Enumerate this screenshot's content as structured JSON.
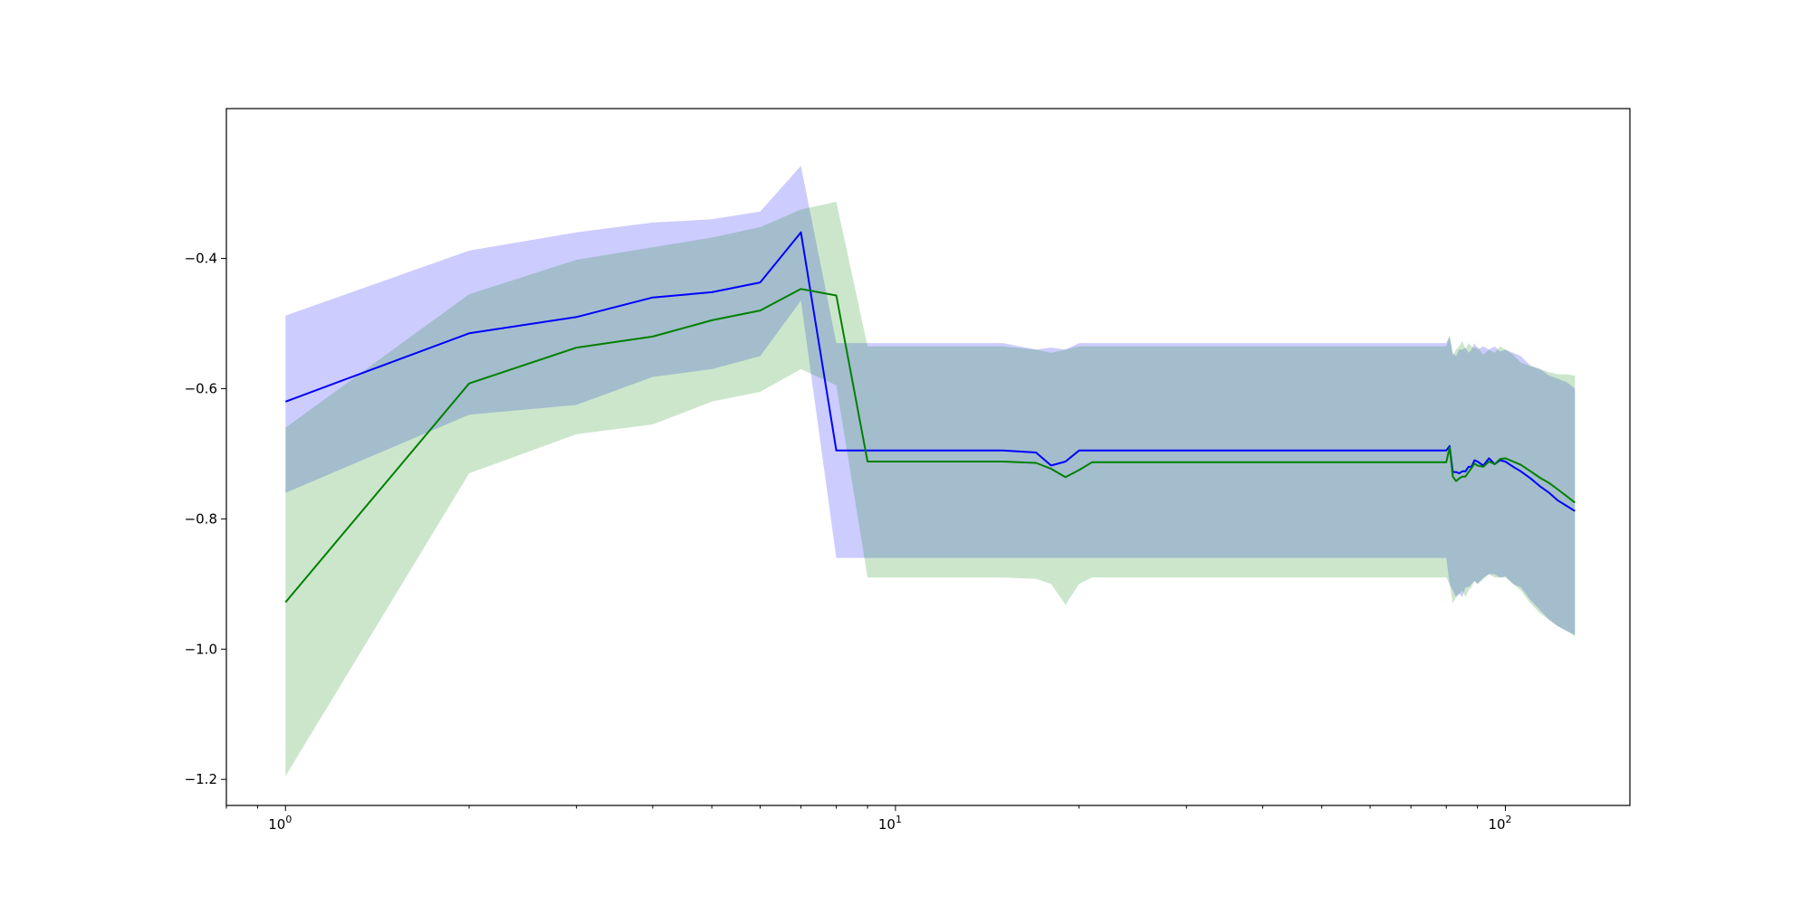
{
  "chart_data": {
    "type": "line",
    "title": "",
    "xlabel": "",
    "ylabel": "",
    "xscale": "log",
    "xlim": [
      0.8,
      160
    ],
    "ylim": [
      -1.24,
      -0.17
    ],
    "x_ticks": [
      {
        "value": 1,
        "base": "10",
        "exp": "0"
      },
      {
        "value": 10,
        "base": "10",
        "exp": "1"
      },
      {
        "value": 100,
        "base": "10",
        "exp": "2"
      }
    ],
    "y_ticks": [
      {
        "value": -0.4,
        "label": "−0.4"
      },
      {
        "value": -0.6,
        "label": "−0.6"
      },
      {
        "value": -0.8,
        "label": "−0.8"
      },
      {
        "value": -1.0,
        "label": "−1.0"
      },
      {
        "value": -1.2,
        "label": "−1.2"
      }
    ],
    "grid": false,
    "legend": "none",
    "series": [
      {
        "color": "#0000ff",
        "band_color": "#0000ff",
        "band_opacity": 0.2,
        "x": [
          1,
          2,
          3,
          4,
          5,
          6,
          7,
          8,
          9,
          10,
          15,
          17,
          18,
          19,
          20,
          25,
          30,
          40,
          50,
          60,
          70,
          80,
          81,
          82,
          83,
          84,
          85,
          86,
          87,
          88,
          89,
          90,
          92,
          94,
          96,
          98,
          100,
          103,
          106,
          110,
          114,
          118,
          122,
          126,
          130
        ],
        "y": [
          -0.62,
          -0.515,
          -0.49,
          -0.46,
          -0.452,
          -0.437,
          -0.36,
          -0.695,
          -0.695,
          -0.695,
          -0.695,
          -0.698,
          -0.718,
          -0.712,
          -0.695,
          -0.695,
          -0.695,
          -0.695,
          -0.695,
          -0.695,
          -0.695,
          -0.695,
          -0.688,
          -0.728,
          -0.728,
          -0.73,
          -0.727,
          -0.727,
          -0.72,
          -0.72,
          -0.71,
          -0.712,
          -0.718,
          -0.707,
          -0.716,
          -0.71,
          -0.712,
          -0.72,
          -0.727,
          -0.738,
          -0.75,
          -0.76,
          -0.772,
          -0.78,
          -0.788
        ],
        "lower": [
          -0.76,
          -0.64,
          -0.625,
          -0.582,
          -0.57,
          -0.55,
          -0.465,
          -0.86,
          -0.86,
          -0.86,
          -0.86,
          -0.86,
          -0.86,
          -0.86,
          -0.86,
          -0.86,
          -0.86,
          -0.86,
          -0.86,
          -0.86,
          -0.86,
          -0.86,
          -0.9,
          -0.91,
          -0.92,
          -0.915,
          -0.92,
          -0.905,
          -0.905,
          -0.9,
          -0.895,
          -0.9,
          -0.89,
          -0.885,
          -0.885,
          -0.89,
          -0.888,
          -0.9,
          -0.905,
          -0.925,
          -0.94,
          -0.955,
          -0.965,
          -0.972,
          -0.978
        ],
        "upper": [
          -0.488,
          -0.388,
          -0.36,
          -0.345,
          -0.34,
          -0.328,
          -0.258,
          -0.53,
          -0.53,
          -0.53,
          -0.53,
          -0.54,
          -0.537,
          -0.54,
          -0.53,
          -0.53,
          -0.53,
          -0.53,
          -0.53,
          -0.53,
          -0.53,
          -0.53,
          -0.52,
          -0.545,
          -0.55,
          -0.54,
          -0.54,
          -0.537,
          -0.545,
          -0.54,
          -0.53,
          -0.54,
          -0.535,
          -0.54,
          -0.535,
          -0.543,
          -0.54,
          -0.545,
          -0.55,
          -0.565,
          -0.57,
          -0.58,
          -0.585,
          -0.59,
          -0.6
        ]
      },
      {
        "color": "#008000",
        "band_color": "#008000",
        "band_opacity": 0.2,
        "x": [
          1,
          2,
          3,
          4,
          5,
          6,
          7,
          8,
          9,
          10,
          15,
          17,
          18,
          19,
          20,
          21,
          25,
          30,
          40,
          50,
          60,
          70,
          80,
          81,
          82,
          83,
          84,
          85,
          86,
          87,
          88,
          89,
          90,
          92,
          94,
          96,
          98,
          100,
          103,
          106,
          110,
          114,
          118,
          122,
          126,
          130
        ],
        "y": [
          -0.928,
          -0.592,
          -0.537,
          -0.52,
          -0.495,
          -0.48,
          -0.447,
          -0.457,
          -0.712,
          -0.712,
          -0.712,
          -0.714,
          -0.723,
          -0.736,
          -0.725,
          -0.713,
          -0.713,
          -0.713,
          -0.713,
          -0.713,
          -0.713,
          -0.713,
          -0.713,
          -0.69,
          -0.735,
          -0.742,
          -0.738,
          -0.735,
          -0.735,
          -0.728,
          -0.722,
          -0.715,
          -0.718,
          -0.72,
          -0.712,
          -0.716,
          -0.708,
          -0.707,
          -0.712,
          -0.717,
          -0.727,
          -0.737,
          -0.745,
          -0.755,
          -0.765,
          -0.775
        ],
        "lower": [
          -1.195,
          -0.73,
          -0.67,
          -0.655,
          -0.62,
          -0.605,
          -0.57,
          -0.595,
          -0.89,
          -0.89,
          -0.89,
          -0.892,
          -0.9,
          -0.932,
          -0.9,
          -0.89,
          -0.89,
          -0.89,
          -0.89,
          -0.89,
          -0.89,
          -0.89,
          -0.89,
          -0.9,
          -0.93,
          -0.92,
          -0.915,
          -0.91,
          -0.92,
          -0.91,
          -0.905,
          -0.895,
          -0.9,
          -0.893,
          -0.885,
          -0.89,
          -0.89,
          -0.89,
          -0.9,
          -0.91,
          -0.93,
          -0.945,
          -0.955,
          -0.965,
          -0.972,
          -0.98
        ],
        "upper": [
          -0.66,
          -0.455,
          -0.402,
          -0.383,
          -0.368,
          -0.352,
          -0.325,
          -0.313,
          -0.535,
          -0.535,
          -0.535,
          -0.54,
          -0.545,
          -0.54,
          -0.535,
          -0.535,
          -0.535,
          -0.535,
          -0.535,
          -0.535,
          -0.535,
          -0.535,
          -0.535,
          -0.518,
          -0.55,
          -0.54,
          -0.535,
          -0.527,
          -0.54,
          -0.53,
          -0.535,
          -0.538,
          -0.535,
          -0.548,
          -0.54,
          -0.545,
          -0.535,
          -0.54,
          -0.548,
          -0.56,
          -0.565,
          -0.57,
          -0.575,
          -0.578,
          -0.578,
          -0.58
        ]
      }
    ]
  }
}
